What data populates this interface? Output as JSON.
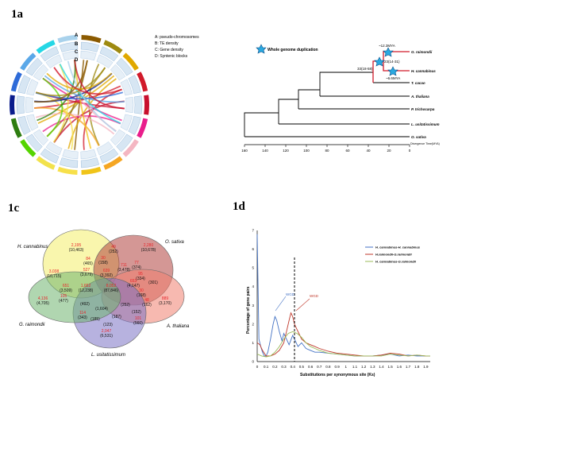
{
  "panels": {
    "a_label": "1a",
    "c_label": "1c",
    "d_label": "1d"
  },
  "circos": {
    "ring_letters": [
      "A",
      "B",
      "C",
      "D"
    ],
    "legend": [
      "A:  pseudo-chromosomes",
      "B:  TE density",
      "C:  Gene density",
      "D:  Syntenic blocks"
    ],
    "chromosome_colors": [
      "#8B5A00",
      "#9E8A10",
      "#E0A800",
      "#D11A2A",
      "#C8102E",
      "#E91E8C",
      "#F4B6C2",
      "#F5A623",
      "#F0C419",
      "#F7E04A",
      "#F2E24C",
      "#55D400",
      "#2E7D10",
      "#0A1C8C",
      "#2E6BD8",
      "#5BA8E8",
      "#26D7E5",
      "#A9D2EC"
    ]
  },
  "tree": {
    "legend_label": "Whole genome duplication",
    "taxa": [
      "G. raimondii",
      "H. cannabinus",
      "T. cacao",
      "A. thaliana",
      "P. trichocarpa",
      "L. usitatissimum",
      "O. sativa"
    ],
    "node_labels": [
      "~12.3MYA",
      "23(14-31)",
      "~6.6MYA",
      "33(18-58)"
    ],
    "axis_ticks": [
      "160",
      "140",
      "120",
      "100",
      "80",
      "60",
      "40",
      "20",
      "0"
    ],
    "axis_title": "Divergence Time(MYA)"
  },
  "venn": {
    "species": [
      "H. cannabinus",
      "O. sativa",
      "A. thaliana",
      "L. usitatissimum",
      "G. raimondii"
    ],
    "counts": [
      {
        "red": "2,195",
        "black": "(10,463)"
      },
      {
        "red": "2,280",
        "black": "(10,678)"
      },
      {
        "red": "889",
        "black": "(3,170)"
      },
      {
        "red": "2,047",
        "black": "(6,531)"
      },
      {
        "red": "4,136",
        "black": "(4,705)"
      },
      {
        "red": "3,038",
        "black": "(10,715)"
      },
      {
        "red": "49",
        "black": "(252)"
      },
      {
        "red": "84",
        "black": "(465)"
      },
      {
        "red": "30",
        "black": "(158)"
      },
      {
        "red": "527",
        "black": "(3,679)"
      },
      {
        "red": "639",
        "black": "(3,392)"
      },
      {
        "red": "711",
        "black": "(3,478)"
      },
      {
        "red": "77",
        "black": "(374)"
      },
      {
        "red": "95",
        "black": "(334)"
      },
      {
        "red": "",
        "black": "(301)"
      },
      {
        "red": "651",
        "black": "(3,509)"
      },
      {
        "red": "1,652",
        "black": "(12,238)"
      },
      {
        "red": "8,052",
        "black": "(87,846)"
      },
      {
        "red": "653",
        "black": "(4,147)"
      },
      {
        "red": "30",
        "black": "(168)"
      },
      {
        "red": "105",
        "black": "(477)"
      },
      {
        "red": "",
        "black": "(1,604)"
      },
      {
        "red": "",
        "black": "(252)"
      },
      {
        "red": "48",
        "black": "(162)"
      },
      {
        "red": "",
        "black": "(492)"
      },
      {
        "red": "",
        "black": "(187)"
      },
      {
        "red": "",
        "black": "(152)"
      },
      {
        "red": "",
        "black": "(185)"
      },
      {
        "red": "",
        "black": "(123)"
      },
      {
        "red": "101",
        "black": "(560)"
      },
      {
        "red": "114",
        "black": "(343)"
      }
    ]
  },
  "chart_data": {
    "type": "line",
    "xlabel": "Substitutions  per synonymous site (Ks)",
    "ylabel": "Percentage of gene pairs",
    "xlim": [
      0,
      1.95
    ],
    "ylim": [
      0,
      7
    ],
    "x_ticks": [
      "0",
      "0.1",
      "0.2",
      "0.3",
      "0.4",
      "0.5",
      "0.6",
      "0.7",
      "0.8",
      "0.9",
      "1",
      "1.1",
      "1.2",
      "1.3",
      "1.4",
      "1.5",
      "1.6",
      "1.7",
      "1.8",
      "1.9"
    ],
    "y_ticks": [
      "0",
      "1",
      "2",
      "3",
      "4",
      "5",
      "6",
      "7"
    ],
    "annotations": [
      "WGD",
      "WGD"
    ],
    "series": [
      {
        "name": "H. cannabinus-H. cannabinus",
        "color": "#4472C4",
        "x": [
          0,
          0.02,
          0.04,
          0.06,
          0.08,
          0.1,
          0.12,
          0.15,
          0.18,
          0.2,
          0.22,
          0.25,
          0.28,
          0.3,
          0.33,
          0.36,
          0.4,
          0.43,
          0.46,
          0.5,
          0.55,
          0.6,
          0.65,
          0.7,
          0.8,
          0.9,
          1.0,
          1.1,
          1.2,
          1.3,
          1.4,
          1.5,
          1.6,
          1.7,
          1.8,
          1.9,
          1.95
        ],
        "y": [
          6.8,
          1.2,
          0.8,
          0.5,
          0.3,
          0.3,
          0.5,
          1.2,
          2.0,
          2.4,
          2.2,
          1.6,
          1.1,
          1.5,
          1.2,
          0.9,
          1.4,
          1.1,
          0.8,
          1.0,
          0.7,
          0.6,
          0.5,
          0.5,
          0.45,
          0.4,
          0.35,
          0.3,
          0.3,
          0.3,
          0.35,
          0.4,
          0.3,
          0.35,
          0.3,
          0.3,
          0.3
        ]
      },
      {
        "name": "H.raimondii-G.raimondii",
        "color": "#C0392B",
        "x": [
          0,
          0.03,
          0.06,
          0.1,
          0.15,
          0.2,
          0.25,
          0.3,
          0.33,
          0.36,
          0.38,
          0.4,
          0.42,
          0.45,
          0.48,
          0.5,
          0.55,
          0.6,
          0.65,
          0.7,
          0.8,
          0.9,
          1.0,
          1.1,
          1.2,
          1.3,
          1.4,
          1.5,
          1.6,
          1.7,
          1.8,
          1.9,
          1.95
        ],
        "y": [
          1.0,
          0.9,
          0.6,
          0.3,
          0.3,
          0.4,
          0.6,
          1.0,
          1.6,
          2.2,
          2.6,
          2.4,
          2.0,
          1.7,
          1.4,
          1.2,
          1.0,
          0.9,
          0.8,
          0.7,
          0.55,
          0.45,
          0.4,
          0.35,
          0.3,
          0.3,
          0.35,
          0.45,
          0.4,
          0.3,
          0.35,
          0.3,
          0.3
        ]
      },
      {
        "name": "H. cannabinus-G.raimondii",
        "color": "#9BBB59",
        "x": [
          0,
          0.05,
          0.1,
          0.15,
          0.2,
          0.25,
          0.3,
          0.35,
          0.4,
          0.45,
          0.5,
          0.55,
          0.6,
          0.65,
          0.7,
          0.8,
          0.9,
          1.0,
          1.1,
          1.2,
          1.3,
          1.4,
          1.5,
          1.6,
          1.7,
          1.8,
          1.9,
          1.95
        ],
        "y": [
          0.4,
          0.3,
          0.25,
          0.3,
          0.5,
          0.8,
          1.2,
          1.5,
          1.6,
          1.5,
          1.3,
          1.0,
          0.8,
          0.7,
          0.6,
          0.45,
          0.4,
          0.35,
          0.3,
          0.3,
          0.3,
          0.3,
          0.4,
          0.35,
          0.3,
          0.35,
          0.3,
          0.3
        ]
      }
    ]
  }
}
